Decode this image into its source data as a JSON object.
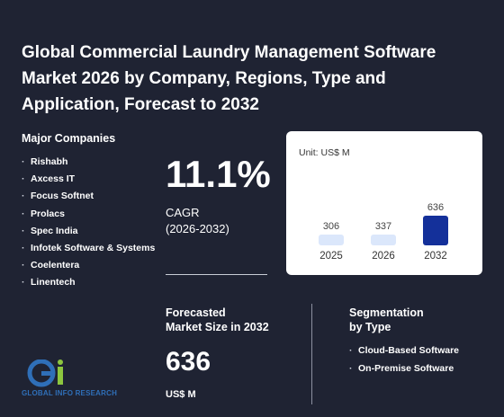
{
  "title": "Global Commercial Laundry Management Software Market 2026 by Company, Regions, Type and Application, Forecast to 2032",
  "companies": {
    "heading": "Major Companies",
    "items": [
      "Rishabh",
      "Axcess IT",
      "Focus Softnet",
      "Prolacs",
      "Spec India",
      "Infotek Software & Systems",
      "Coelentera",
      "Linentech"
    ]
  },
  "cagr": {
    "value": "11.1%",
    "label": "CAGR",
    "period": "(2026-2032)"
  },
  "forecast": {
    "heading_line1": "Forecasted",
    "heading_line2": "Market Size in 2032",
    "value": "636",
    "unit": "US$ M"
  },
  "segmentation": {
    "heading_line1": "Segmentation",
    "heading_line2": "by Type",
    "items": [
      "Cloud-Based Software",
      "On-Premise Software"
    ]
  },
  "logo": {
    "text": "GLOBAL INFO RESEARCH"
  },
  "colors": {
    "background": "#1f2333",
    "bar_light": "#dbe7fb",
    "bar_highlight": "#14309a"
  },
  "chart_data": {
    "type": "bar",
    "unit_label": "Unit: US$ M",
    "categories": [
      "2025",
      "2026",
      "2032"
    ],
    "values": [
      306,
      337,
      636
    ],
    "data_labels": [
      "306",
      "337",
      "636"
    ],
    "highlight_category": "2032"
  }
}
